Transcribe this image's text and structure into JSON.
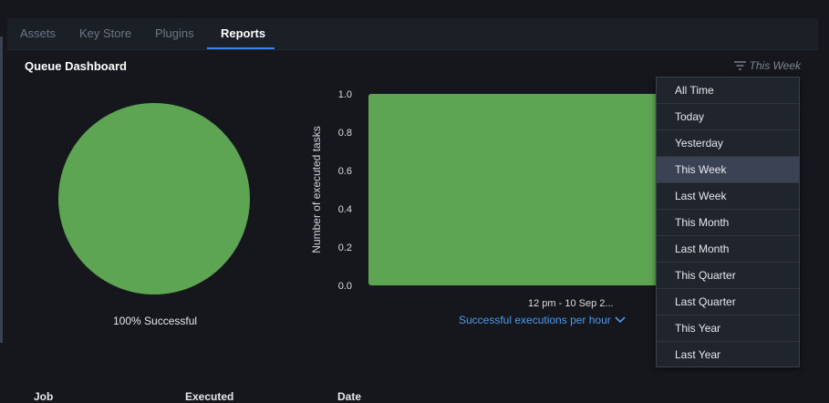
{
  "tabs": [
    {
      "label": "Assets"
    },
    {
      "label": "Key Store"
    },
    {
      "label": "Plugins"
    },
    {
      "label": "Reports",
      "active": true
    }
  ],
  "dashboard": {
    "title": "Queue Dashboard",
    "filter_label": "This Week"
  },
  "pie": {
    "label": "100% Successful",
    "color": "#5da552",
    "successful_fraction": 1.0
  },
  "chart_data": {
    "type": "bar",
    "categories": [
      "12 pm - 10 Sep 2..."
    ],
    "values": [
      1.0
    ],
    "ylabel": "Number of executed tasks",
    "ylim": [
      0,
      1.0
    ],
    "yticks": [
      "0.0",
      "0.2",
      "0.4",
      "0.6",
      "0.8",
      "1.0"
    ],
    "series_selector": "Successful executions per hour",
    "bar_color": "#5da552"
  },
  "dropdown": {
    "selected": "This Week",
    "options": [
      "All Time",
      "Today",
      "Yesterday",
      "This Week",
      "Last Week",
      "This Month",
      "Last Month",
      "This Quarter",
      "Last Quarter",
      "This Year",
      "Last Year"
    ]
  },
  "table": {
    "headers": [
      "Job",
      "Executed",
      "Date"
    ]
  }
}
